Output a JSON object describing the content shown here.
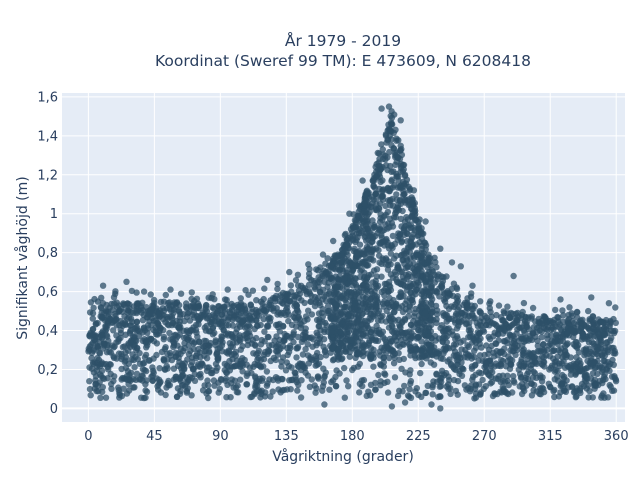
{
  "chart_data": {
    "type": "scatter",
    "title": [
      "År 1979 - 2019",
      "Koordinat (Sweref 99 TM): E 473609, N 6208418"
    ],
    "xlabel": "Vågriktning (grader)",
    "ylabel": "Signifikant våghöjd (m)",
    "xlim": [
      -18,
      366
    ],
    "ylim": [
      -0.07,
      1.62
    ],
    "xticks": [
      0,
      45,
      90,
      135,
      180,
      225,
      270,
      315,
      360
    ],
    "xtick_labels": [
      "0",
      "45",
      "90",
      "135",
      "180",
      "225",
      "270",
      "315",
      "360"
    ],
    "yticks": [
      0,
      0.2,
      0.4,
      0.6,
      0.8,
      1,
      1.2,
      1.4,
      1.6
    ],
    "ytick_labels": [
      "0",
      "0,2",
      "0,4",
      "0,6",
      "0,8",
      "1",
      "1,2",
      "1,4",
      "1,6"
    ],
    "grid": true,
    "marker_color": "#2d5068",
    "background_color": "#e5ecf6",
    "envelope": [
      {
        "x": 0,
        "y": 0.5
      },
      {
        "x": 20,
        "y": 0.55
      },
      {
        "x": 45,
        "y": 0.55
      },
      {
        "x": 90,
        "y": 0.53
      },
      {
        "x": 120,
        "y": 0.56
      },
      {
        "x": 140,
        "y": 0.62
      },
      {
        "x": 160,
        "y": 0.7
      },
      {
        "x": 175,
        "y": 0.86
      },
      {
        "x": 185,
        "y": 1.02
      },
      {
        "x": 195,
        "y": 1.22
      },
      {
        "x": 202,
        "y": 1.4
      },
      {
        "x": 207,
        "y": 1.52
      },
      {
        "x": 212,
        "y": 1.4
      },
      {
        "x": 218,
        "y": 1.18
      },
      {
        "x": 225,
        "y": 0.96
      },
      {
        "x": 235,
        "y": 0.74
      },
      {
        "x": 250,
        "y": 0.58
      },
      {
        "x": 270,
        "y": 0.5
      },
      {
        "x": 300,
        "y": 0.48
      },
      {
        "x": 330,
        "y": 0.46
      },
      {
        "x": 360,
        "y": 0.46
      }
    ],
    "min_level": 0.05,
    "outliers": [
      {
        "x": 10,
        "y": 0.63
      },
      {
        "x": 26,
        "y": 0.65
      },
      {
        "x": 38,
        "y": 0.6
      },
      {
        "x": 56,
        "y": 0.61
      },
      {
        "x": 95,
        "y": 0.61
      },
      {
        "x": 122,
        "y": 0.66
      },
      {
        "x": 137,
        "y": 0.7
      },
      {
        "x": 150,
        "y": 0.74
      },
      {
        "x": 160,
        "y": 0.79
      },
      {
        "x": 167,
        "y": 0.86
      },
      {
        "x": 178,
        "y": 1.0
      },
      {
        "x": 187,
        "y": 1.17
      },
      {
        "x": 200,
        "y": 1.54
      },
      {
        "x": 205,
        "y": 1.55
      },
      {
        "x": 213,
        "y": 1.48
      },
      {
        "x": 222,
        "y": 1.12
      },
      {
        "x": 230,
        "y": 0.96
      },
      {
        "x": 240,
        "y": 0.82
      },
      {
        "x": 248,
        "y": 0.75
      },
      {
        "x": 254,
        "y": 0.73
      },
      {
        "x": 262,
        "y": 0.63
      },
      {
        "x": 290,
        "y": 0.68
      },
      {
        "x": 322,
        "y": 0.56
      },
      {
        "x": 343,
        "y": 0.57
      },
      {
        "x": 355,
        "y": 0.54
      },
      {
        "x": 207,
        "y": 0.01
      },
      {
        "x": 234,
        "y": 0.02
      },
      {
        "x": 240,
        "y": 0.0
      },
      {
        "x": 216,
        "y": 0.03
      },
      {
        "x": 161,
        "y": 0.02
      }
    ]
  }
}
